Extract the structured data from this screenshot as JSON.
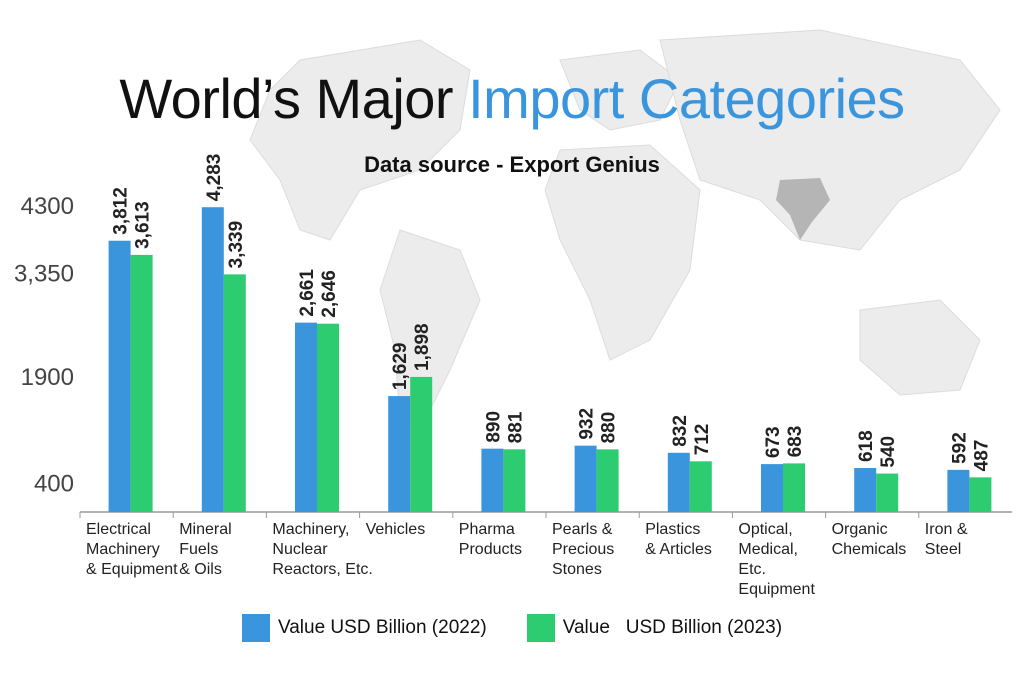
{
  "header": {
    "title_main": "World’s Major ",
    "title_accent": "Import Categories",
    "subtitle": "Data source - Export Genius"
  },
  "colors": {
    "series_2022": "#3a95dd",
    "series_2023": "#2ecc71",
    "accent": "#3a95dd",
    "map": "#e6e6e6"
  },
  "chart_data": {
    "type": "bar",
    "categories": [
      "Electrical Machinery & Equipment",
      "Mineral Fuels & Oils",
      "Machinery, Nuclear Reactors, Etc.",
      "Vehicles",
      "Pharma Products",
      "Pearls & Precious Stones",
      "Plastics & Articles",
      "Optical, Medical, Etc. Equipment",
      "Organic Chemicals",
      "Iron & Steel"
    ],
    "category_lines": [
      [
        "Electrical",
        "Machinery",
        "& Equipment"
      ],
      [
        "Mineral",
        "Fuels",
        "& Oils"
      ],
      [
        "Machinery,",
        "Nuclear",
        "Reactors, Etc."
      ],
      [
        "Vehicles"
      ],
      [
        "Pharma",
        "Products"
      ],
      [
        "Pearls &",
        "Precious",
        "Stones"
      ],
      [
        "Plastics",
        "& Articles"
      ],
      [
        "Optical,",
        "Medical,",
        "Etc.",
        "Equipment"
      ],
      [
        "Organic",
        "Chemicals"
      ],
      [
        "Iron &",
        "Steel"
      ]
    ],
    "series": [
      {
        "name": "Value USD Billion (2022)",
        "values": [
          3812,
          4283,
          2661,
          1629,
          890,
          932,
          832,
          673,
          618,
          592
        ],
        "labels": [
          "3,812",
          "4,283",
          "2,661",
          "1,629",
          "890",
          "932",
          "832",
          "673",
          "618",
          "592"
        ]
      },
      {
        "name": "Value   USD Billion (2023)",
        "values": [
          3613,
          3339,
          2646,
          1898,
          881,
          880,
          712,
          683,
          540,
          487
        ],
        "labels": [
          "3,613",
          "3,339",
          "2,646",
          "1,898",
          "881",
          "880",
          "712",
          "683",
          "540",
          "487"
        ]
      }
    ],
    "yticks": [
      {
        "value": 4300,
        "label": "4300"
      },
      {
        "value": 3350,
        "label": "3,350"
      },
      {
        "value": 1900,
        "label": "1900"
      },
      {
        "value": 400,
        "label": "400"
      }
    ],
    "ylim": [
      0,
      4300
    ],
    "legend_position": "bottom",
    "grid": false
  }
}
